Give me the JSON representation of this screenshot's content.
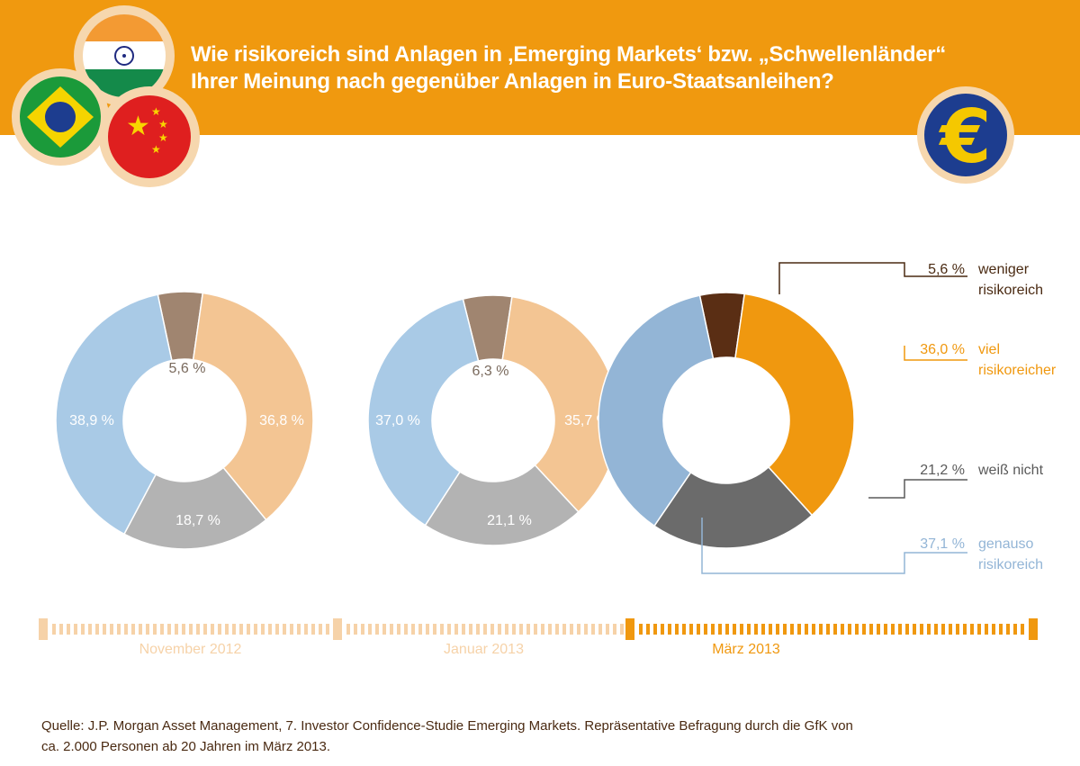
{
  "header": {
    "title_line1": "Wie risikoreich sind Anlagen in ‚Emerging Markets‘ bzw. „Schwellenländer“",
    "title_line2": "Ihrer Meinung nach gegenüber Anlagen in Euro-Staatsanleihen?",
    "icons": [
      "india-flag-icon",
      "brazil-flag-icon",
      "china-flag-icon",
      "euro-coin-icon"
    ],
    "color": "#f0990f"
  },
  "chart_data": [
    {
      "type": "pie",
      "donut": true,
      "period": "November 2012",
      "categories": [
        "weniger risikoreich",
        "viel risikoreicher",
        "weiß nicht",
        "genauso risikoreich"
      ],
      "values": [
        5.6,
        36.8,
        18.7,
        38.9
      ],
      "labels": [
        "5,6 %",
        "36,8 %",
        "18,7 %",
        "38,9 %"
      ],
      "colors": [
        "#a08570",
        "#f3c593",
        "#b3b3b3",
        "#a9cae6"
      ]
    },
    {
      "type": "pie",
      "donut": true,
      "period": "Januar 2013",
      "categories": [
        "weniger risikoreich",
        "viel risikoreicher",
        "weiß nicht",
        "genauso risikoreich"
      ],
      "values": [
        6.3,
        35.7,
        21.1,
        37.0
      ],
      "labels": [
        "6,3 %",
        "35,7 %",
        "21,1 %",
        "37,0 %"
      ],
      "colors": [
        "#a08570",
        "#f3c593",
        "#b3b3b3",
        "#a9cae6"
      ]
    },
    {
      "type": "pie",
      "donut": true,
      "period": "März 2013",
      "categories": [
        "weniger risikoreich",
        "viel risikoreicher",
        "weiß nicht",
        "genauso risikoreich"
      ],
      "values": [
        5.6,
        36.0,
        21.2,
        37.1
      ],
      "labels": [
        "5,6 %",
        "36,0 %",
        "21,2 %",
        "37,1 %"
      ],
      "colors": [
        "#5a2e14",
        "#f0980f",
        "#6b6b6b",
        "#93b5d6"
      ],
      "legend": [
        {
          "value": "5,6 %",
          "line1": "weniger",
          "line2": "risikoreich",
          "color": "#4a2a12"
        },
        {
          "value": "36,0 %",
          "line1": "viel",
          "line2": "risikoreicher",
          "color": "#f0980f"
        },
        {
          "value": "21,2 %",
          "line1": "weiß nicht",
          "line2": "",
          "color": "#5a5a5a"
        },
        {
          "value": "37,1 %",
          "line1": "genauso",
          "line2": "risikoreich",
          "color": "#93b5d6"
        }
      ]
    }
  ],
  "timeline": {
    "periods": [
      "November 2012",
      "Januar 2013",
      "März 2013"
    ],
    "active": "März 2013",
    "inactive_color": "#f6d2a8",
    "active_color": "#f0980f"
  },
  "source": {
    "line1": "Quelle: J.P. Morgan Asset Management, 7. Investor Confidence-Studie Emerging Markets. Repräsentative Befragung durch die GfK von",
    "line2": "ca. 2.000 Personen ab 20 Jahren im März 2013."
  }
}
